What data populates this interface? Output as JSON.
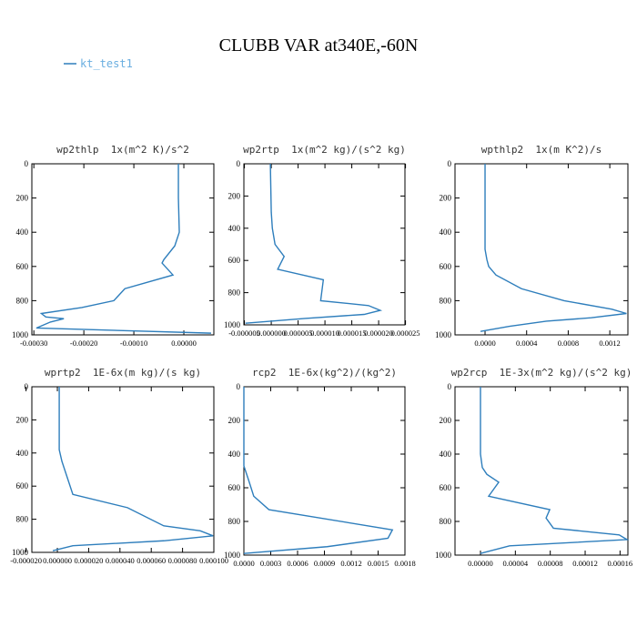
{
  "title": "CLUBB VAR at340E,-60N",
  "chart_data": [
    {
      "type": "line",
      "title": "wp2thlp  1x(m^2 K)/s^2",
      "levels": [
        0,
        200,
        400,
        480,
        560,
        580,
        650,
        730,
        800,
        840,
        875,
        895,
        905,
        925,
        960,
        990
      ],
      "series": [
        {
          "name": "kt_test1",
          "color": "#2e7ebc",
          "values": [
            -1.09e-05,
            -1.09e-05,
            -9.1e-06,
            -1.82e-05,
            -4e-05,
            -4.36e-05,
            -2.18e-05,
            -0.000118,
            -0.00014,
            -0.000204,
            -0.000285,
            -0.000276,
            -0.00024,
            -0.000267,
            -0.000295,
            5.45e-05
          ]
        }
      ],
      "xlim": [
        -0.000304,
        6e-05
      ],
      "xticks": [
        {
          "value": -0.0003,
          "label": "-0.00030"
        },
        {
          "value": -0.0002,
          "label": "-0.00020"
        },
        {
          "value": -0.0001,
          "label": "-0.00010"
        },
        {
          "value": 0,
          "label": "0.00000"
        }
      ],
      "ylim": [
        1000,
        0
      ],
      "yticks": [
        0,
        200,
        400,
        600,
        800,
        1000
      ]
    },
    {
      "type": "line",
      "title": "wp2rtp  1x(m^2 kg)/(s^2 kg)",
      "levels": [
        0,
        300,
        400,
        500,
        575,
        655,
        720,
        850,
        880,
        910,
        935,
        960,
        990
      ],
      "series": [
        {
          "color": "#2e7ebc",
          "values": [
            -1.7e-07,
            0,
            2e-07,
            7e-07,
            2.4e-06,
            1.2e-06,
            9.7e-06,
            9.2e-06,
            1.81e-05,
            2.03e-05,
            1.73e-05,
            6.3e-06,
            -4.8e-06
          ]
        }
      ],
      "xlim": [
        -5.1e-06,
        2.49e-05
      ],
      "xticks": [
        {
          "value": -5e-06,
          "label": "-0.000005"
        },
        {
          "value": 0,
          "label": "0.000000"
        },
        {
          "value": 5e-06,
          "label": "0.000005"
        },
        {
          "value": 1e-05,
          "label": "0.000010"
        },
        {
          "value": 1.5e-05,
          "label": "0.000015"
        },
        {
          "value": 2e-05,
          "label": "0.000020"
        },
        {
          "value": 2.5e-05,
          "label": "0.000025"
        }
      ],
      "ylim": [
        1000,
        0
      ],
      "yticks": [
        0,
        200,
        400,
        600,
        800,
        1000
      ]
    },
    {
      "type": "line",
      "title": "wpthlp2  1x(m K^2)/s",
      "levels": [
        0,
        500,
        560,
        600,
        650,
        730,
        800,
        850,
        875,
        900,
        920,
        950,
        980
      ],
      "series": [
        {
          "color": "#2e7ebc",
          "values": [
            0,
            0,
            1.75e-05,
            3.5e-05,
            0.000105,
            0.00035,
            0.00076,
            0.00122,
            0.00136,
            0.00102,
            0.00059,
            0.000236,
            -4.38e-05
          ]
        }
      ],
      "xlim": [
        -0.000289,
        0.001374
      ],
      "xticks": [
        {
          "value": 0,
          "label": "0.0000"
        },
        {
          "value": 0.0004,
          "label": "0.0004"
        },
        {
          "value": 0.0008,
          "label": "0.0008"
        },
        {
          "value": 0.0012,
          "label": "0.0012"
        }
      ],
      "ylim": [
        1000,
        0
      ],
      "yticks": [
        0,
        200,
        400,
        600,
        800,
        1000
      ]
    },
    {
      "type": "line",
      "title": "wprtp2  1E-6x(m kg)/(s kg)",
      "levels": [
        0,
        380,
        450,
        550,
        650,
        730,
        840,
        870,
        900,
        930,
        960,
        990
      ],
      "series": [
        {
          "color": "#2e7ebc",
          "values": [
            1.2e-06,
            1.2e-06,
            2.9e-06,
            6.4e-06,
            9.9e-06,
            4.48e-05,
            6.8e-05,
            9.13e-05,
            9.95e-05,
            6.8e-05,
            9.9e-06,
            -2.9e-06
          ]
        }
      ],
      "xlim": [
        -1.63e-05,
        0.0001
      ],
      "xticks": [
        {
          "value": -2e-05,
          "label": "-0.000020"
        },
        {
          "value": 0,
          "label": "0.000000"
        },
        {
          "value": 2e-05,
          "label": "0.000020"
        },
        {
          "value": 4e-05,
          "label": "0.000040"
        },
        {
          "value": 6e-05,
          "label": "0.000060"
        },
        {
          "value": 8e-05,
          "label": "0.000080"
        },
        {
          "value": 0.0001,
          "label": "0.000100"
        }
      ],
      "ylim": [
        1000,
        0
      ],
      "yticks": [
        0,
        200,
        400,
        600,
        800,
        1000
      ]
    },
    {
      "type": "line",
      "title": "rcp2  1E-6x(kg^2)/(kg^2)",
      "levels": [
        0,
        470,
        550,
        650,
        730,
        850,
        900,
        950,
        990
      ],
      "series": [
        {
          "color": "#2e7ebc",
          "values": [
            0,
            0,
            5e-05,
            0.00011,
            0.00028,
            0.00166,
            0.00161,
            0.00093,
            0
          ]
        }
      ],
      "xlim": [
        0,
        0.0018
      ],
      "xticks": [
        {
          "value": 0,
          "label": "0.0000"
        },
        {
          "value": 0.0003,
          "label": "0.0003"
        },
        {
          "value": 0.0006,
          "label": "0.0006"
        },
        {
          "value": 0.0009,
          "label": "0.0009"
        },
        {
          "value": 0.0012,
          "label": "0.0012"
        },
        {
          "value": 0.0015,
          "label": "0.0015"
        },
        {
          "value": 0.0018,
          "label": "0.0018"
        }
      ],
      "ylim": [
        1000,
        0
      ],
      "yticks": [
        0,
        200,
        400,
        600,
        800,
        1000
      ]
    },
    {
      "type": "line",
      "title": "wp2rcp  1E-3x(m^2 kg)/(s^2 kg)",
      "levels": [
        0,
        400,
        480,
        520,
        567,
        650,
        730,
        780,
        840,
        880,
        908,
        945,
        990
      ],
      "series": [
        {
          "color": "#2e7ebc",
          "values": [
            0,
            0,
            2.1e-06,
            7.3e-06,
            2.09e-05,
            9.4e-06,
            7.94e-05,
            7.52e-05,
            8.36e-05,
            0.000159,
            0.000168,
            3.34e-05,
            0
          ]
        }
      ],
      "xlim": [
        -2.92e-05,
        0.000169
      ],
      "xticks": [
        {
          "value": 0,
          "label": "0.00000"
        },
        {
          "value": 4e-05,
          "label": "0.00004"
        },
        {
          "value": 8e-05,
          "label": "0.00008"
        },
        {
          "value": 0.00012,
          "label": "0.00012"
        },
        {
          "value": 0.00016,
          "label": "0.00016"
        }
      ],
      "ylim": [
        1000,
        0
      ],
      "yticks": [
        0,
        200,
        400,
        600,
        800,
        1000
      ]
    }
  ]
}
